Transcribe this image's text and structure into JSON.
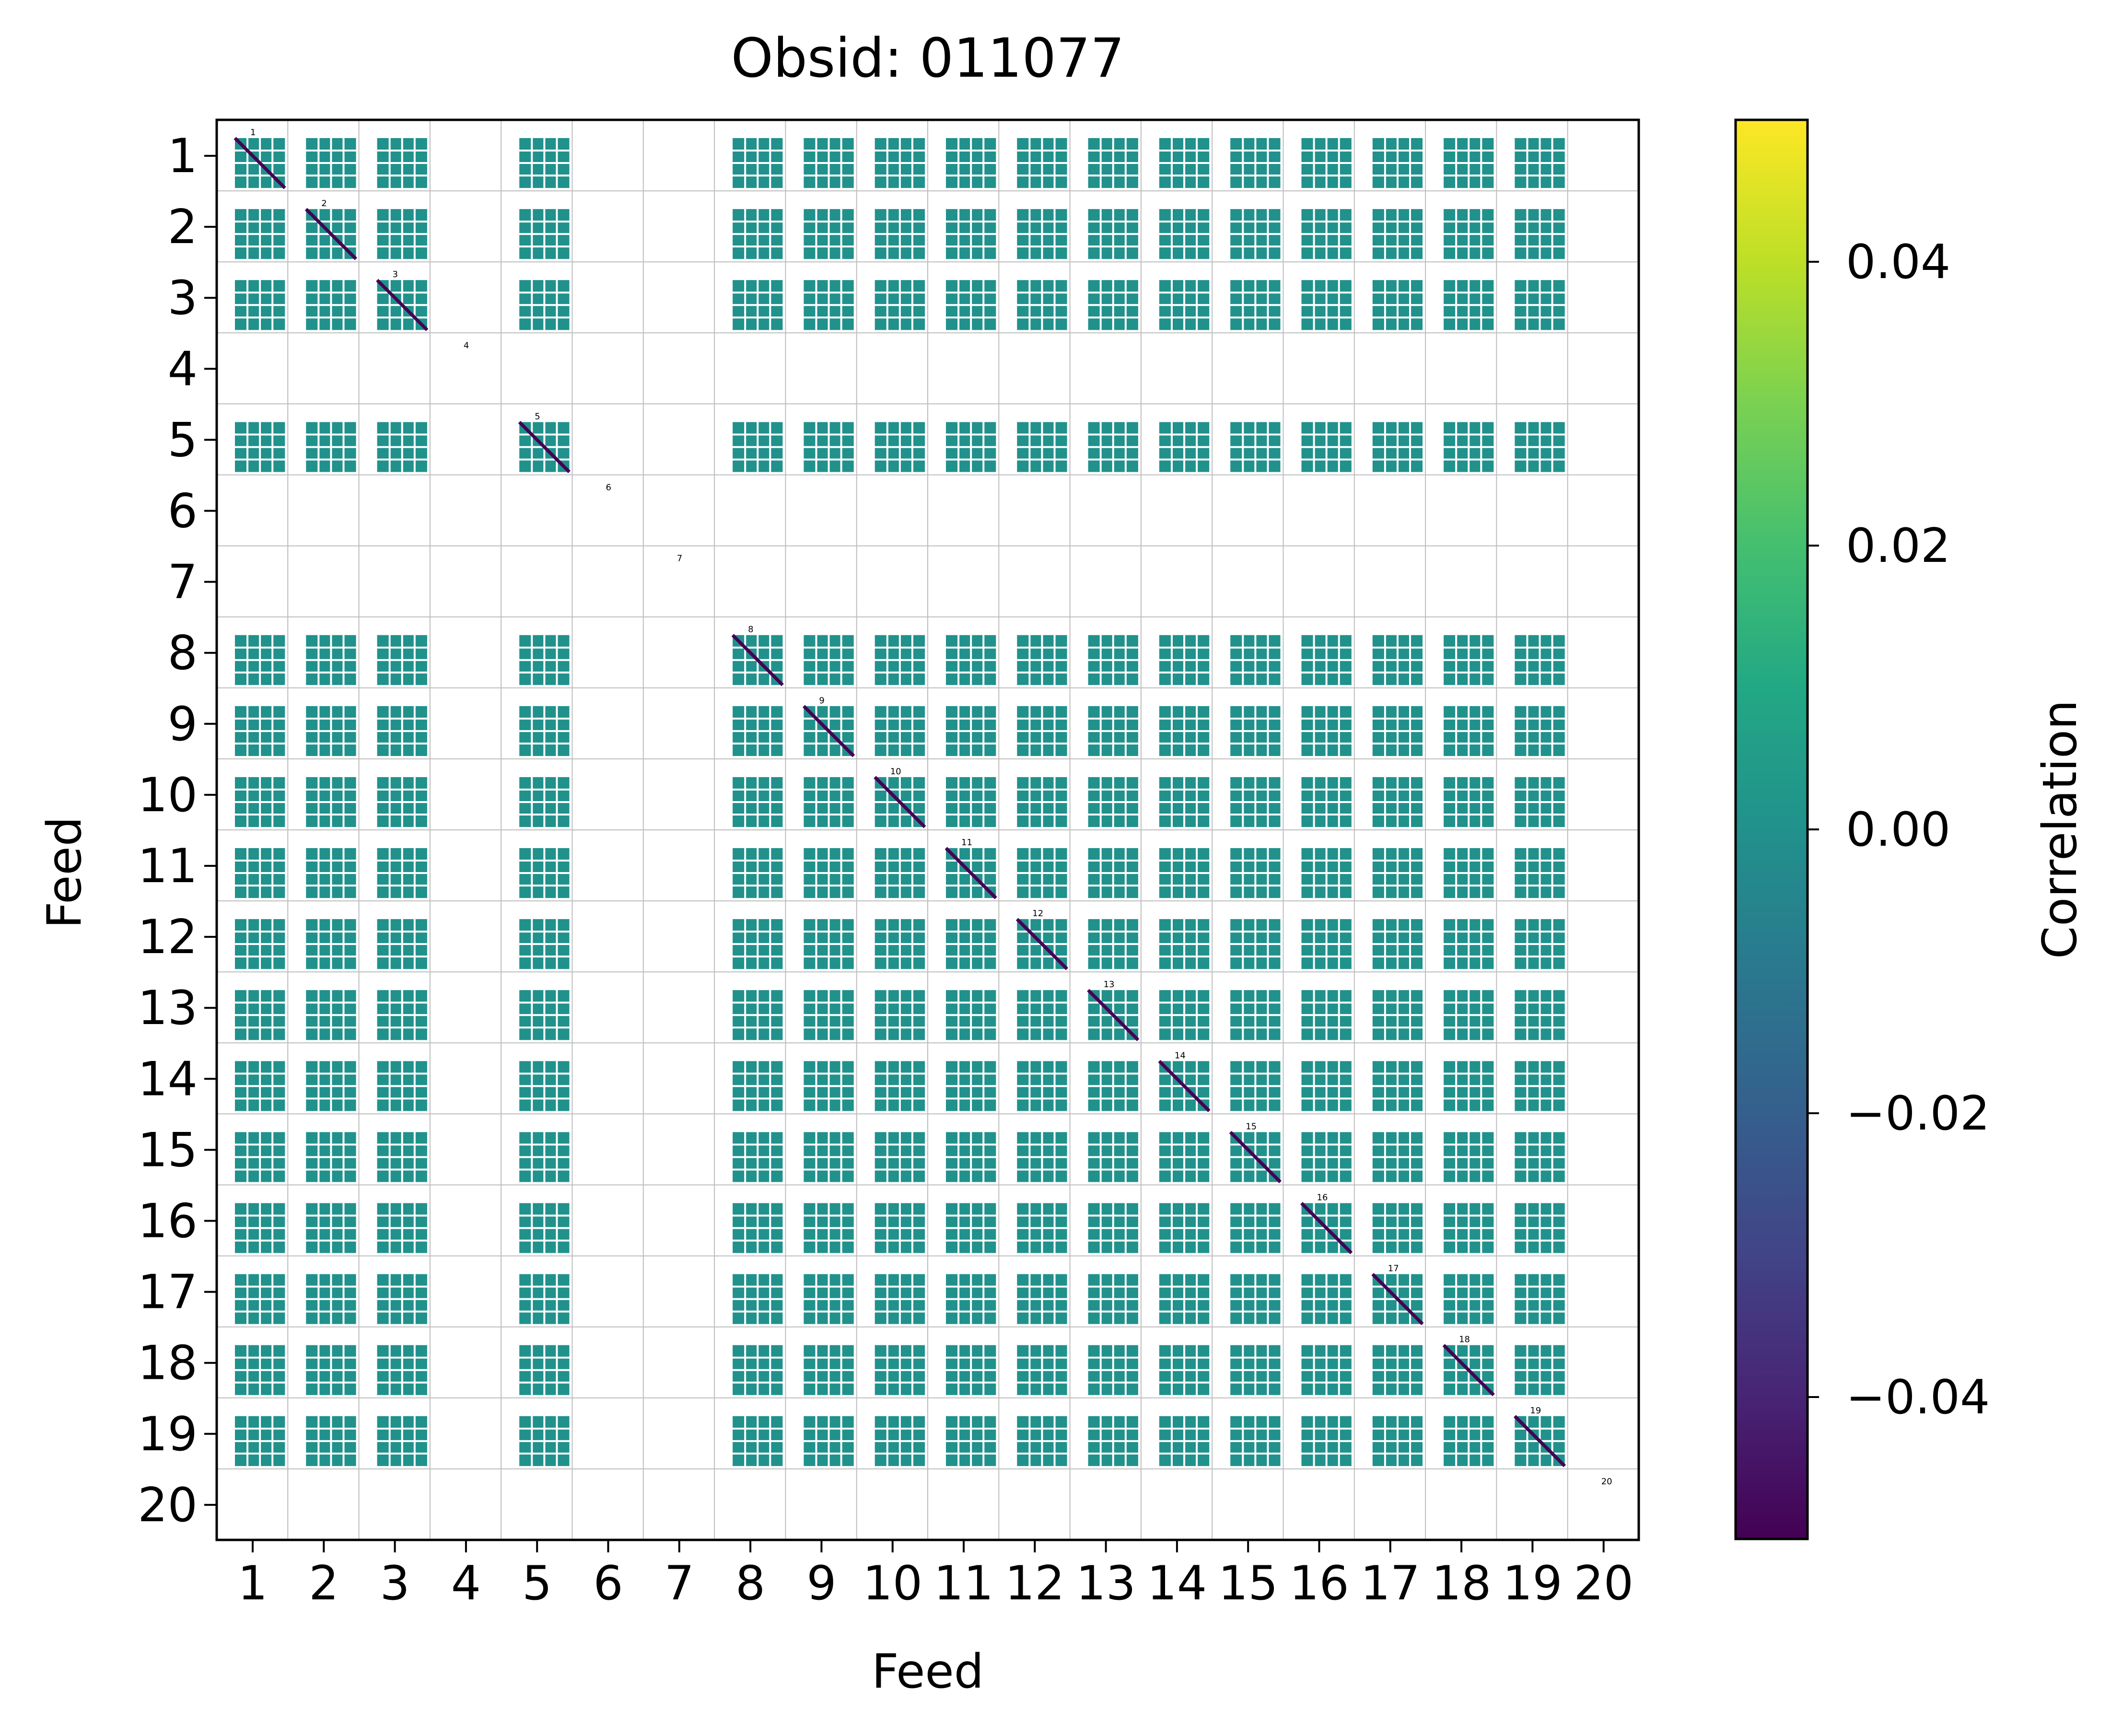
{
  "chart_data": {
    "type": "heatmap",
    "title": "Obsid: 011077",
    "xlabel": "Feed",
    "ylabel": "Feed",
    "feeds": [
      1,
      2,
      3,
      4,
      5,
      6,
      7,
      8,
      9,
      10,
      11,
      12,
      13,
      14,
      15,
      16,
      17,
      18,
      19,
      20
    ],
    "tick_labels": [
      "1",
      "2",
      "3",
      "4",
      "5",
      "6",
      "7",
      "8",
      "9",
      "10",
      "11",
      "12",
      "13",
      "14",
      "15",
      "16",
      "17",
      "18",
      "19",
      "20"
    ],
    "active_feeds": [
      1,
      2,
      3,
      5,
      8,
      9,
      10,
      11,
      12,
      13,
      14,
      15,
      16,
      17,
      18,
      19
    ],
    "inactive_feeds": [
      4,
      6,
      7,
      20
    ],
    "diagonal_labels": [
      "1",
      "2",
      "3",
      "4",
      "5",
      "6",
      "7",
      "8",
      "9",
      "10",
      "11",
      "12",
      "13",
      "14",
      "15",
      "16",
      "17",
      "18",
      "19",
      "20"
    ],
    "background_value": 0.0,
    "diagonal_value": -0.05,
    "colorbar": {
      "label": "Correlation",
      "colormap": "viridis",
      "range": [
        -0.05,
        0.05
      ],
      "ticks": [
        -0.04,
        -0.02,
        0.0,
        0.02,
        0.04
      ],
      "tick_labels": [
        "−0.04",
        "−0.02",
        "0.00",
        "0.02",
        "0.04"
      ]
    },
    "colors": {
      "cell": "#21918c",
      "diagonal": "#440154",
      "grid": "#bdbdbd",
      "gap": "#ffffff"
    }
  }
}
